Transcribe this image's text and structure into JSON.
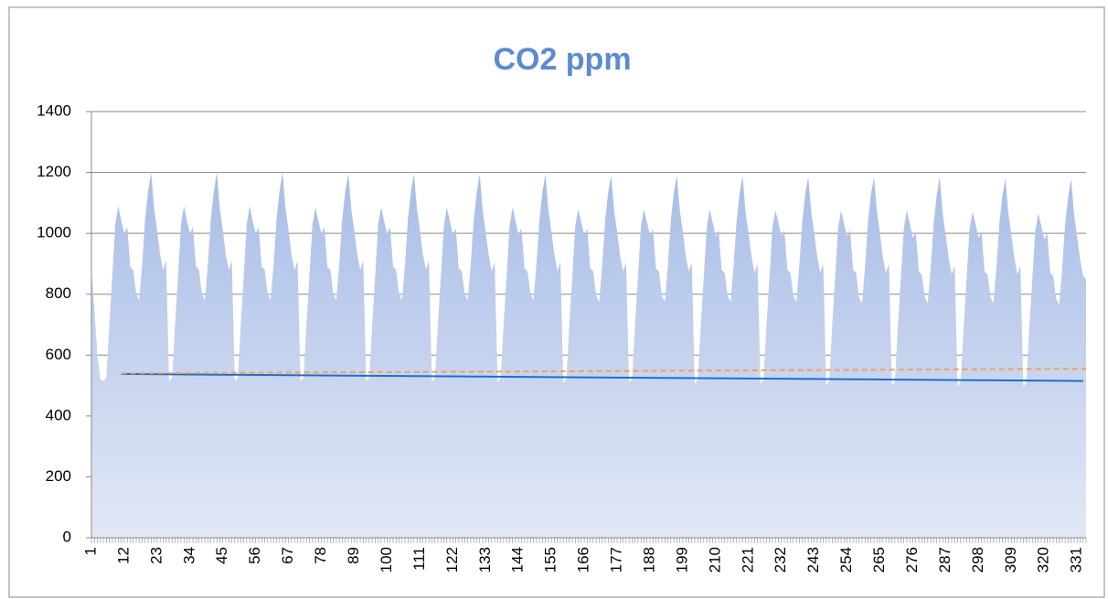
{
  "chart_data": {
    "type": "area",
    "title": "CO2 ppm",
    "categories": [
      1,
      null,
      null,
      null,
      null,
      null,
      null,
      null,
      null,
      null,
      null,
      12,
      null,
      null,
      null,
      null,
      null,
      null,
      null,
      null,
      null,
      null,
      23,
      null,
      null,
      null,
      null,
      null,
      null,
      null,
      null,
      null,
      null,
      34,
      null,
      null,
      null,
      null,
      null,
      null,
      null,
      null,
      null,
      null,
      45,
      null,
      null,
      null,
      null,
      null,
      null,
      null,
      null,
      null,
      null,
      56,
      null,
      null,
      null,
      null,
      null,
      null,
      null,
      null,
      null,
      null,
      67,
      null,
      null,
      null,
      null,
      null,
      null,
      null,
      null,
      null,
      null,
      78,
      null,
      null,
      null,
      null,
      null,
      null,
      null,
      null,
      null,
      null,
      89,
      null,
      null,
      null,
      null,
      null,
      null,
      null,
      null,
      null,
      null,
      100,
      null,
      null,
      null,
      null,
      null,
      null,
      null,
      null,
      null,
      null,
      111,
      null,
      null,
      null,
      null,
      null,
      null,
      null,
      null,
      null,
      null,
      122,
      null,
      null,
      null,
      null,
      null,
      null,
      null,
      null,
      null,
      null,
      133,
      null,
      null,
      null,
      null,
      null,
      null,
      null,
      null,
      null,
      null,
      144,
      null,
      null,
      null,
      null,
      null,
      null,
      null,
      null,
      null,
      null,
      155,
      null,
      null,
      null,
      null,
      null,
      null,
      null,
      null,
      null,
      null,
      166,
      null,
      null,
      null,
      null,
      null,
      null,
      null,
      null,
      null,
      null,
      177,
      null,
      null,
      null,
      null,
      null,
      null,
      null,
      null,
      null,
      null,
      188,
      null,
      null,
      null,
      null,
      null,
      null,
      null,
      null,
      null,
      null,
      199,
      null,
      null,
      null,
      null,
      null,
      null,
      null,
      null,
      null,
      null,
      210,
      null,
      null,
      null,
      null,
      null,
      null,
      null,
      null,
      null,
      null,
      221,
      null,
      null,
      null,
      null,
      null,
      null,
      null,
      null,
      null,
      null,
      232,
      null,
      null,
      null,
      null,
      null,
      null,
      null,
      null,
      null,
      null,
      243,
      null,
      null,
      null,
      null,
      null,
      null,
      null,
      null,
      null,
      null,
      254,
      null,
      null,
      null,
      null,
      null,
      null,
      null,
      null,
      null,
      null,
      265,
      null,
      null,
      null,
      null,
      null,
      null,
      null,
      null,
      null,
      null,
      276,
      null,
      null,
      null,
      null,
      null,
      null,
      null,
      null,
      null,
      null,
      287,
      null,
      null,
      null,
      null,
      null,
      null,
      null,
      null,
      null,
      null,
      298,
      null,
      null,
      null,
      null,
      null,
      null,
      null,
      null,
      null,
      null,
      309,
      null,
      null,
      null,
      null,
      null,
      null,
      null,
      null,
      null,
      null,
      320,
      null,
      null,
      null,
      null,
      null,
      null,
      null,
      null,
      null,
      null,
      331,
      null,
      null,
      null
    ],
    "values": [
      880,
      750,
      600,
      520,
      515,
      525,
      700,
      860,
      1030,
      1090,
      1040,
      1000,
      1020,
      890,
      880,
      800,
      780,
      900,
      1050,
      1140,
      1200,
      1080,
      1010,
      930,
      880,
      910,
      515,
      525,
      700,
      860,
      1030,
      1090,
      1040,
      1000,
      1020,
      890,
      880,
      800,
      780,
      900,
      1050,
      1140,
      1200,
      1080,
      1010,
      930,
      880,
      910,
      515,
      525,
      700,
      860,
      1030,
      1090,
      1040,
      1000,
      1020,
      890,
      880,
      800,
      780,
      900,
      1050,
      1140,
      1200,
      1080,
      1010,
      930,
      880,
      910,
      515,
      525,
      700,
      860,
      1030,
      1085,
      1040,
      1000,
      1020,
      890,
      880,
      800,
      780,
      900,
      1050,
      1140,
      1195,
      1080,
      1010,
      930,
      880,
      910,
      515,
      525,
      700,
      860,
      1030,
      1085,
      1040,
      1000,
      1020,
      890,
      880,
      800,
      780,
      900,
      1050,
      1140,
      1195,
      1080,
      1010,
      930,
      880,
      910,
      512,
      525,
      700,
      860,
      1025,
      1085,
      1040,
      995,
      1015,
      885,
      875,
      800,
      780,
      900,
      1045,
      1135,
      1195,
      1075,
      1005,
      930,
      875,
      905,
      512,
      525,
      700,
      860,
      1025,
      1085,
      1040,
      995,
      1015,
      885,
      875,
      800,
      780,
      900,
      1045,
      1135,
      1195,
      1075,
      1005,
      930,
      875,
      905,
      510,
      520,
      700,
      860,
      1025,
      1080,
      1035,
      995,
      1015,
      885,
      875,
      795,
      775,
      895,
      1045,
      1135,
      1190,
      1075,
      1005,
      925,
      875,
      905,
      510,
      520,
      700,
      860,
      1025,
      1080,
      1035,
      995,
      1015,
      885,
      875,
      795,
      775,
      895,
      1045,
      1135,
      1190,
      1075,
      1005,
      925,
      875,
      905,
      505,
      520,
      695,
      855,
      1020,
      1080,
      1035,
      990,
      1010,
      880,
      870,
      795,
      775,
      895,
      1040,
      1130,
      1190,
      1070,
      1000,
      925,
      870,
      900,
      505,
      520,
      695,
      855,
      1020,
      1075,
      1035,
      990,
      1010,
      880,
      870,
      795,
      775,
      895,
      1040,
      1130,
      1185,
      1070,
      1000,
      925,
      870,
      900,
      500,
      515,
      695,
      855,
      1020,
      1075,
      1030,
      990,
      1010,
      880,
      870,
      790,
      770,
      890,
      1040,
      1130,
      1185,
      1070,
      1000,
      920,
      870,
      900,
      500,
      515,
      695,
      855,
      1015,
      1075,
      1030,
      985,
      1005,
      875,
      865,
      790,
      770,
      890,
      1035,
      1125,
      1185,
      1065,
      995,
      920,
      865,
      895,
      495,
      515,
      690,
      850,
      1015,
      1070,
      1030,
      985,
      1005,
      875,
      865,
      790,
      770,
      890,
      1035,
      1125,
      1180,
      1065,
      995,
      920,
      865,
      895,
      495,
      510,
      690,
      850,
      1010,
      1065,
      1025,
      980,
      1000,
      870,
      860,
      785,
      765,
      885,
      1030,
      1120,
      1180,
      1060,
      990,
      915,
      860,
      850
    ],
    "ylim": [
      0,
      1400
    ],
    "yticks": [
      0,
      200,
      400,
      600,
      800,
      1000,
      1200,
      1400
    ],
    "grid": true,
    "colors": {
      "area_top": "#a8bde6",
      "area_bottom": "#e2e8f6"
    },
    "trendlines": [
      {
        "color": "#1f6fc5",
        "dashed": false,
        "from": [
          10,
          538
        ],
        "to": [
          332,
          515
        ]
      },
      {
        "color": "#f0a060",
        "dashed": true,
        "from": [
          10,
          540
        ],
        "to": [
          333,
          555
        ]
      }
    ]
  }
}
